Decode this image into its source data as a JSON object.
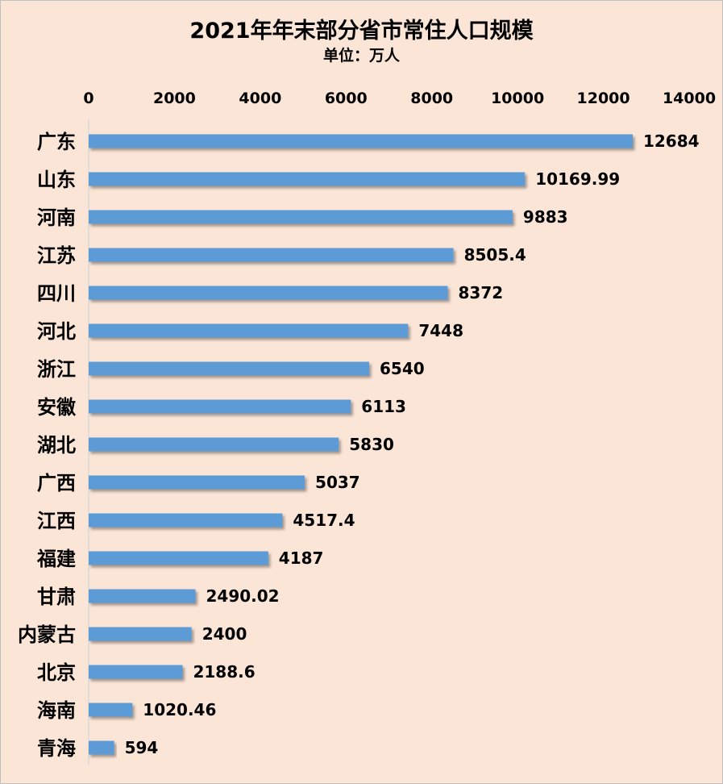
{
  "chart_data": {
    "type": "bar",
    "orientation": "horizontal",
    "title": "2021年年末部分省市常住人口规模",
    "subtitle": "单位：万人",
    "xlim": [
      0,
      14000
    ],
    "x_ticks": [
      0,
      2000,
      4000,
      6000,
      8000,
      10000,
      12000,
      14000
    ],
    "x_tick_labels": [
      "0",
      "2000",
      "4000",
      "6000",
      "8000",
      "10000",
      "12000",
      "14000"
    ],
    "x_axis_position": "top",
    "grid": false,
    "legend": "none",
    "bar_color": "#5b9bd5",
    "categories": [
      "广东",
      "山东",
      "河南",
      "江苏",
      "四川",
      "河北",
      "浙江",
      "安徽",
      "湖北",
      "广西",
      "江西",
      "福建",
      "甘肃",
      "内蒙古",
      "北京",
      "海南",
      "青海"
    ],
    "values": [
      12684,
      10169.99,
      9883,
      8505.4,
      8372,
      7448,
      6540,
      6113,
      5830,
      5037,
      4517.4,
      4187,
      2490.02,
      2400,
      2188.6,
      1020.46,
      594
    ],
    "value_labels": [
      "12684",
      "10169.99",
      "9883",
      "8505.4",
      "8372",
      "7448",
      "6540",
      "6113",
      "5830",
      "5037",
      "4517.4",
      "4187",
      "2490.02",
      "2400",
      "2188.6",
      "1020.46",
      "594"
    ]
  }
}
